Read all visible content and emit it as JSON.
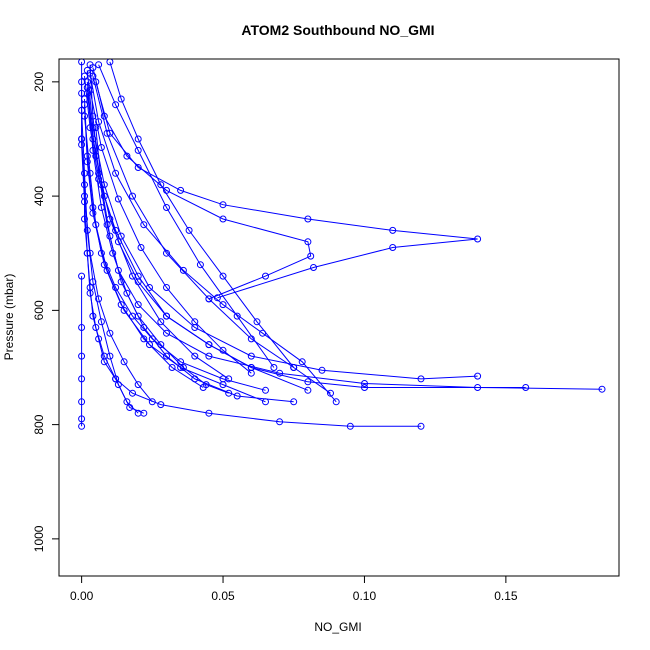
{
  "chart_data": {
    "type": "line",
    "title": "ATOM2 Southbound NO_GMI",
    "xlabel": "NO_GMI",
    "ylabel": "Pressure (mbar)",
    "xlim": [
      -0.008,
      0.19
    ],
    "ylim": [
      1065,
      160
    ],
    "y_reversed": true,
    "x_ticks": [
      0.0,
      0.05,
      0.1,
      0.15
    ],
    "x_tick_labels": [
      "0.00",
      "0.05",
      "0.10",
      "0.15"
    ],
    "y_ticks": [
      200,
      400,
      600,
      800,
      1000
    ],
    "y_tick_labels": [
      "200",
      "400",
      "600",
      "800",
      "1000"
    ],
    "marker": "open-circle",
    "line_color": "#0000ff",
    "series": [
      {
        "x": [
          0.0,
          0.0,
          0.0,
          0.001,
          0.001,
          0.002,
          0.003,
          0.004,
          0.006,
          0.008,
          0.012,
          0.018,
          0.028,
          0.045,
          0.07,
          0.095,
          0.12
        ],
        "y": [
          165,
          220,
          300,
          380,
          440,
          500,
          560,
          610,
          650,
          690,
          720,
          745,
          765,
          780,
          795,
          803,
          803
        ]
      },
      {
        "x": [
          0.003,
          0.004,
          0.006,
          0.009,
          0.013,
          0.02,
          0.03,
          0.045,
          0.07,
          0.1,
          0.14,
          0.184
        ],
        "y": [
          170,
          260,
          360,
          450,
          530,
          590,
          640,
          680,
          710,
          728,
          735,
          738
        ]
      },
      {
        "x": [
          0.002,
          0.004,
          0.008,
          0.014,
          0.024,
          0.04,
          0.06,
          0.085,
          0.12,
          0.14
        ],
        "y": [
          180,
          280,
          380,
          470,
          560,
          630,
          680,
          705,
          720,
          715
        ]
      },
      {
        "x": [
          0.005,
          0.01,
          0.02,
          0.035,
          0.05,
          0.08,
          0.11,
          0.14,
          0.11,
          0.082,
          0.048
        ],
        "y": [
          200,
          290,
          350,
          390,
          415,
          440,
          460,
          475,
          490,
          525,
          578
        ]
      },
      {
        "x": [
          0.001,
          0.003,
          0.006,
          0.012,
          0.02,
          0.03,
          0.045,
          0.06,
          0.08
        ],
        "y": [
          190,
          280,
          370,
          460,
          540,
          610,
          660,
          700,
          740
        ]
      },
      {
        "x": [
          0.004,
          0.008,
          0.016,
          0.03,
          0.05,
          0.08,
          0.081,
          0.065,
          0.045
        ],
        "y": [
          175,
          260,
          330,
          390,
          440,
          480,
          505,
          540,
          580
        ]
      },
      {
        "x": [
          0.002,
          0.004,
          0.007,
          0.011,
          0.016,
          0.022,
          0.03,
          0.04,
          0.055,
          0.075
        ],
        "y": [
          210,
          320,
          420,
          500,
          570,
          630,
          680,
          720,
          750,
          760
        ]
      },
      {
        "x": [
          0.001,
          0.002,
          0.004,
          0.007,
          0.012,
          0.018,
          0.025,
          0.035,
          0.05,
          0.065
        ],
        "y": [
          230,
          330,
          420,
          500,
          560,
          610,
          650,
          690,
          720,
          740
        ]
      },
      {
        "x": [
          0.0,
          0.001,
          0.002,
          0.004,
          0.007,
          0.01,
          0.013,
          0.017,
          0.022
        ],
        "y": [
          250,
          360,
          460,
          550,
          620,
          680,
          730,
          770,
          780
        ]
      },
      {
        "x": [
          0.003,
          0.006,
          0.012,
          0.022,
          0.036,
          0.05,
          0.064,
          0.078,
          0.09
        ],
        "y": [
          185,
          270,
          360,
          450,
          530,
          590,
          640,
          690,
          760
        ]
      },
      {
        "x": [
          0.006,
          0.012,
          0.02,
          0.03,
          0.042,
          0.055,
          0.068
        ],
        "y": [
          170,
          240,
          320,
          420,
          520,
          610,
          700
        ]
      },
      {
        "x": [
          0.002,
          0.004,
          0.008,
          0.013,
          0.02,
          0.03,
          0.045,
          0.06,
          0.08,
          0.1,
          0.157
        ],
        "y": [
          200,
          300,
          400,
          480,
          550,
          610,
          660,
          700,
          725,
          735,
          735
        ]
      },
      {
        "x": [
          0.001,
          0.003,
          0.005,
          0.009,
          0.015,
          0.024,
          0.035,
          0.05,
          0.065
        ],
        "y": [
          260,
          360,
          450,
          530,
          600,
          660,
          700,
          730,
          760
        ]
      },
      {
        "x": [
          0.0,
          0.001,
          0.003,
          0.006,
          0.01,
          0.015,
          0.02,
          0.025
        ],
        "y": [
          300,
          400,
          500,
          580,
          640,
          690,
          730,
          760
        ]
      },
      {
        "x": [
          0.004,
          0.009,
          0.018,
          0.03,
          0.045,
          0.06,
          0.075,
          0.088
        ],
        "y": [
          190,
          290,
          400,
          500,
          580,
          650,
          700,
          745
        ]
      },
      {
        "x": [
          0.002,
          0.005,
          0.01,
          0.018,
          0.028,
          0.04,
          0.052
        ],
        "y": [
          220,
          330,
          440,
          540,
          620,
          680,
          720
        ]
      },
      {
        "x": [
          0.001,
          0.002,
          0.004,
          0.008,
          0.014,
          0.022,
          0.032,
          0.043
        ],
        "y": [
          240,
          340,
          430,
          520,
          590,
          650,
          700,
          735
        ]
      },
      {
        "x": [
          0.0,
          0.0,
          0.001,
          0.002,
          0.003,
          0.005,
          0.008,
          0.012,
          0.016,
          0.02
        ],
        "y": [
          200,
          310,
          410,
          500,
          570,
          630,
          680,
          720,
          760,
          780
        ]
      },
      {
        "x": [
          0.01,
          0.014,
          0.02,
          0.028,
          0.038,
          0.05,
          0.062,
          0.075
        ],
        "y": [
          165,
          230,
          300,
          380,
          460,
          540,
          620,
          700
        ]
      },
      {
        "x": [
          0.003,
          0.007,
          0.013,
          0.021,
          0.03,
          0.04,
          0.05,
          0.06
        ],
        "y": [
          215,
          315,
          405,
          490,
          560,
          620,
          670,
          710
        ]
      },
      {
        "x": [
          0.0,
          0.0,
          0.0,
          0.0,
          0.0,
          0.0,
          0.0
        ],
        "y": [
          540,
          630,
          680,
          720,
          760,
          790,
          803
        ]
      },
      {
        "x": [
          0.005,
          0.007,
          0.01,
          0.014,
          0.02,
          0.028,
          0.036,
          0.044,
          0.052
        ],
        "y": [
          280,
          380,
          470,
          550,
          610,
          660,
          700,
          730,
          745
        ]
      }
    ]
  }
}
